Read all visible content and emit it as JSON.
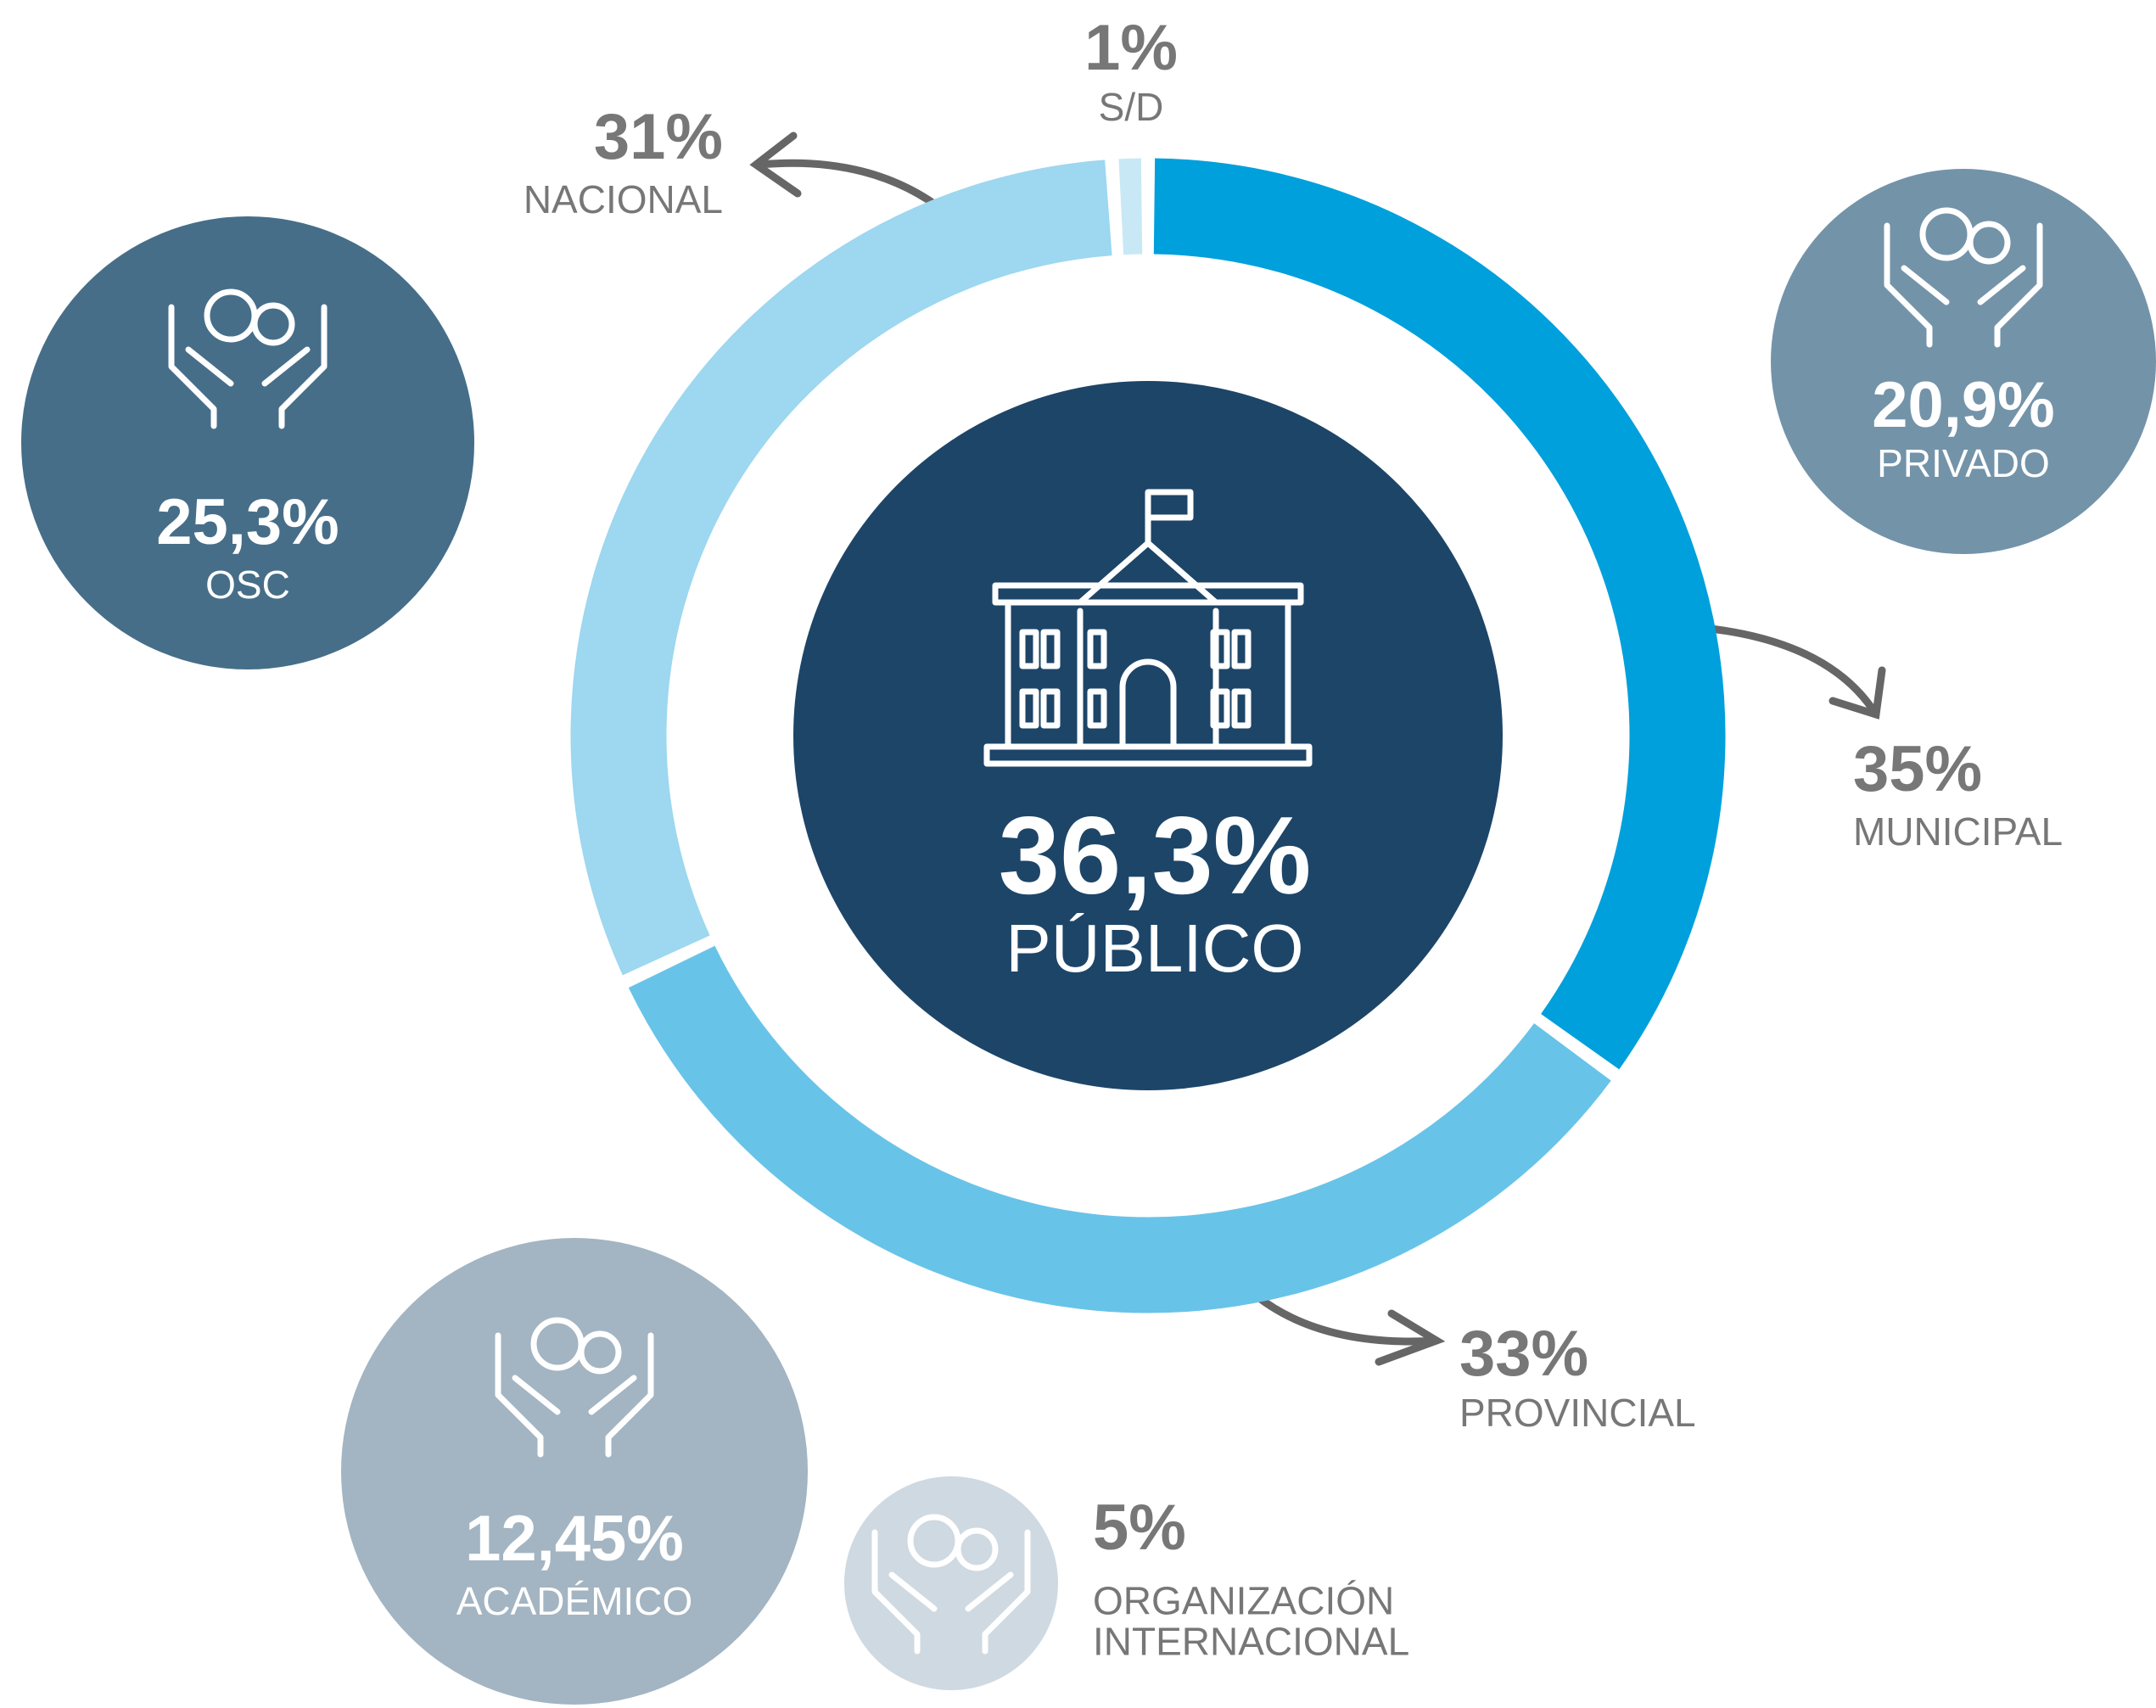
{
  "chart_data": {
    "type": "donut",
    "center": {
      "value": 36.3,
      "value_label": "36,3%",
      "label": "PÚBLICO",
      "color": "#1d4568"
    },
    "categories": [
      "MUNICIPAL",
      "PROVINCIAL",
      "NACIONAL",
      "S/D"
    ],
    "values": [
      35,
      33,
      31,
      1
    ],
    "value_labels": [
      "35%",
      "33%",
      "31%",
      "1%"
    ],
    "colors": [
      "#00a0dc",
      "#68c3e8",
      "#9dd7f0",
      "#c8e8f6"
    ],
    "bubbles": [
      {
        "label": "OSC",
        "value": 25.3,
        "value_label": "25,3%",
        "color": "#466e89"
      },
      {
        "label": "PRIVADO",
        "value": 20.9,
        "value_label": "20,9%",
        "color": "#7393a9"
      },
      {
        "label": "ACADÉMICO",
        "value": 12.45,
        "value_label": "12,45%",
        "color": "#a3b4c2"
      },
      {
        "label": "ORGANIZACIÓN INTERNACIONAL",
        "value": 5,
        "value_label": "5%",
        "color": "#cfd9e1"
      }
    ]
  }
}
